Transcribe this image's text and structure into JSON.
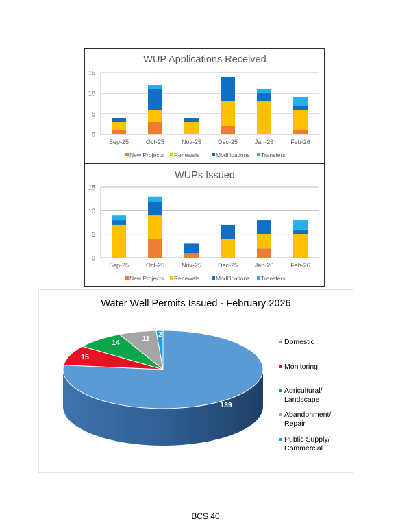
{
  "page": {
    "footer": "BCS 40"
  },
  "colors": {
    "new_projects": "#ED7D31",
    "renewals": "#FFC000",
    "modifications": "#0F6FC6",
    "transfers": "#26B0EA",
    "gridline": "#BFBFBF",
    "axis_text": "#595959",
    "title_text": "#595959"
  },
  "chart_data": [
    {
      "type": "bar",
      "stacked": true,
      "title": "WUP Applications Received",
      "xlabel": "",
      "ylabel": "",
      "categories": [
        "Sep-25",
        "Oct-25",
        "Nov-25",
        "Dec-25",
        "Jan-26",
        "Feb-26"
      ],
      "series": [
        {
          "name": "New Projects",
          "values": [
            1,
            3,
            0,
            2,
            0,
            1
          ]
        },
        {
          "name": "Renewals",
          "values": [
            2,
            3,
            3,
            6,
            8,
            5
          ]
        },
        {
          "name": "Modifications",
          "values": [
            1,
            5,
            1,
            6,
            2,
            1
          ]
        },
        {
          "name": "Transfers",
          "values": [
            0,
            1,
            0,
            0,
            1,
            2
          ]
        }
      ],
      "yticks": [
        0,
        5,
        10,
        15
      ],
      "ylim": [
        0,
        15
      ],
      "grid": true,
      "legend_position": "bottom"
    },
    {
      "type": "bar",
      "stacked": true,
      "title": "WUPs Issued",
      "xlabel": "",
      "ylabel": "",
      "categories": [
        "Sep-25",
        "Oct-25",
        "Nov-25",
        "Dec-25",
        "Jan-26",
        "Feb-26"
      ],
      "series": [
        {
          "name": "New Projects",
          "values": [
            0,
            4,
            1,
            0,
            2,
            0
          ]
        },
        {
          "name": "Renewals",
          "values": [
            7,
            5,
            0,
            4,
            3,
            5
          ]
        },
        {
          "name": "Modifications",
          "values": [
            1,
            3,
            2,
            3,
            3,
            1
          ]
        },
        {
          "name": "Transfers",
          "values": [
            1,
            1,
            0,
            0,
            0,
            2
          ]
        }
      ],
      "yticks": [
        0,
        5,
        10,
        15
      ],
      "ylim": [
        0,
        15
      ],
      "grid": true,
      "legend_position": "bottom"
    },
    {
      "type": "pie",
      "style": "3d",
      "title": "Water Well Permits Issued - February 2026",
      "categories": [
        "Domestic",
        "Monitoring",
        "Agricultural/ Landscape",
        "Abandonment/ Repair",
        "Public Supply/ Commercial"
      ],
      "values": [
        139,
        15,
        14,
        11,
        2
      ],
      "colors": [
        "#5B9BD5",
        "#E81123",
        "#0DA54A",
        "#A5A5A5",
        "#1BA1E2"
      ],
      "data_labels": true,
      "legend_position": "right"
    }
  ]
}
